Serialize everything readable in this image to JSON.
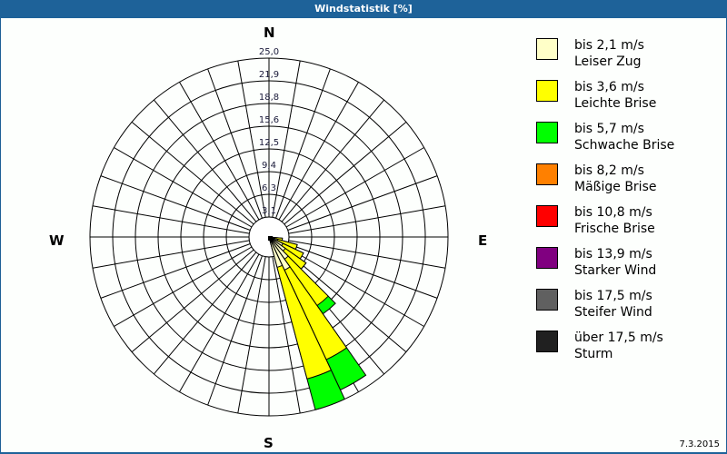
{
  "window": {
    "title": "Windstatistik [%]",
    "date": "7.3.2015"
  },
  "compass": {
    "N": "N",
    "E": "E",
    "S": "S",
    "W": "W"
  },
  "colors": {
    "title_bg": "#1e6299",
    "grid": "#000000"
  },
  "legend": [
    {
      "line1": "bis 2,1 m/s",
      "line2": "Leiser Zug",
      "color": "#ffffc8"
    },
    {
      "line1": "bis 3,6 m/s",
      "line2": "Leichte Brise",
      "color": "#ffff00"
    },
    {
      "line1": "bis 5,7 m/s",
      "line2": "Schwache Brise",
      "color": "#00ff00"
    },
    {
      "line1": "bis 8,2 m/s",
      "line2": "Mäßige Brise",
      "color": "#ff8000"
    },
    {
      "line1": "bis 10,8 m/s",
      "line2": "Frische Brise",
      "color": "#ff0000"
    },
    {
      "line1": "bis 13,9 m/s",
      "line2": "Starker Wind",
      "color": "#800080"
    },
    {
      "line1": "bis 17,5 m/s",
      "line2": "Steifer Wind",
      "color": "#606060"
    },
    {
      "line1": "über 17,5 m/s",
      "line2": "Sturm",
      "color": "#202020"
    }
  ],
  "chart_data": {
    "type": "wind-rose (polar stacked bar)",
    "title": "Windstatistik [%]",
    "sector_width_deg": 10,
    "radial_ticks": [
      "3,1",
      "6,3",
      "9,4",
      "12,5",
      "15,6",
      "18,8",
      "21,9",
      "25,0"
    ],
    "radial_range": [
      0,
      25.0
    ],
    "grid": true,
    "legend_position": "right",
    "series": [
      "bis 2,1 m/s",
      "bis 3,6 m/s",
      "bis 5,7 m/s",
      "bis 8,2 m/s",
      "bis 10,8 m/s",
      "bis 13,9 m/s",
      "bis 17,5 m/s",
      "über 17,5 m/s"
    ],
    "sectors": [
      {
        "direction_deg": 100,
        "cumulative": [
          0.7,
          2.1,
          2.1
        ]
      },
      {
        "direction_deg": 110,
        "cumulative": [
          1.4,
          4.4,
          4.4
        ]
      },
      {
        "direction_deg": 120,
        "cumulative": [
          2.4,
          5.6,
          5.6
        ]
      },
      {
        "direction_deg": 130,
        "cumulative": [
          3.1,
          6.6,
          6.6
        ]
      },
      {
        "direction_deg": 140,
        "cumulative": [
          4.1,
          11.9,
          13.3
        ]
      },
      {
        "direction_deg": 150,
        "cumulative": [
          5.4,
          19.0,
          23.6
        ]
      },
      {
        "direction_deg": 160,
        "cumulative": [
          4.7,
          20.6,
          25.0
        ]
      }
    ],
    "calm_center": true
  }
}
